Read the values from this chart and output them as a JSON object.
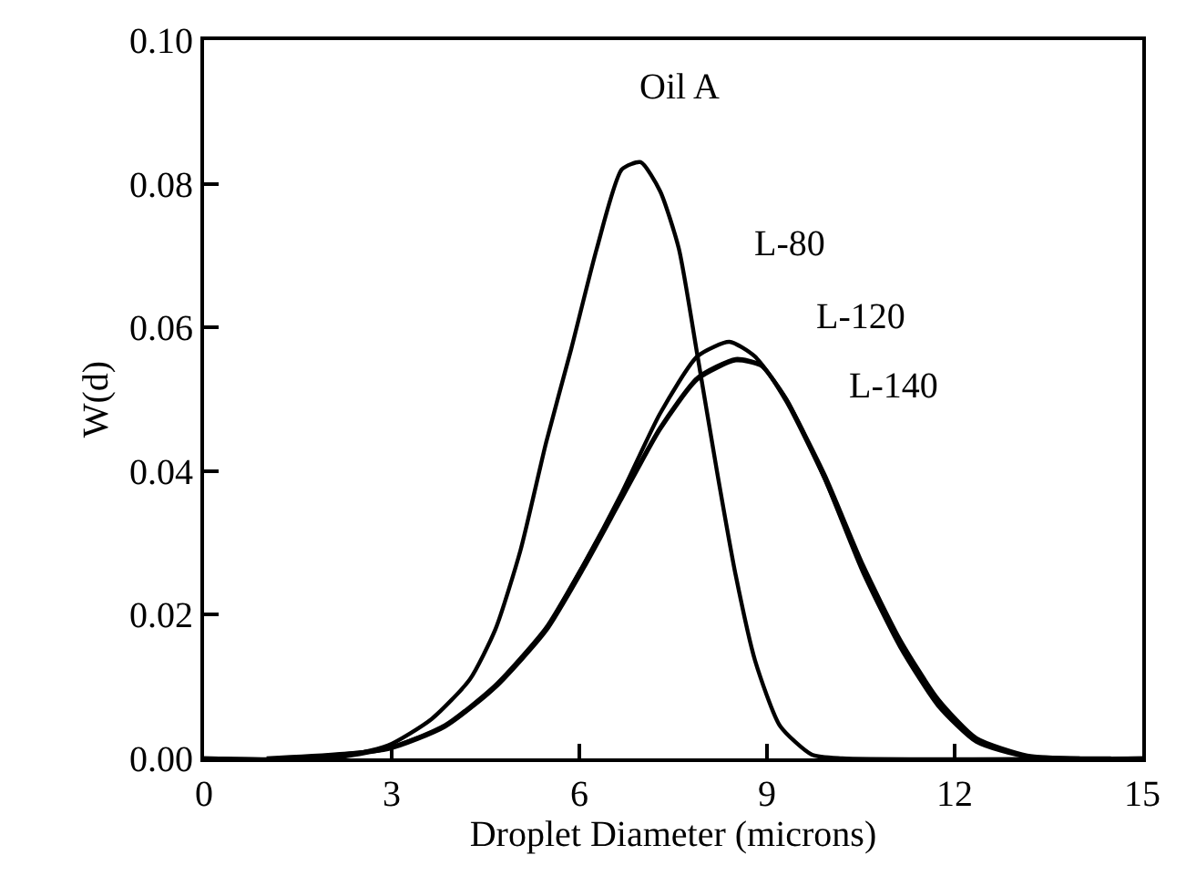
{
  "chart_data": {
    "type": "line",
    "xlabel": "Droplet Diameter (microns)",
    "ylabel": "W(d)",
    "xlim": [
      0,
      15
    ],
    "ylim": [
      0,
      0.1
    ],
    "xticks": [
      0,
      3,
      6,
      9,
      12,
      15
    ],
    "yticks": [
      {
        "value": 0,
        "label": "0.00"
      },
      {
        "value": 0.02,
        "label": "0.02"
      },
      {
        "value": 0.04,
        "label": "0.04"
      },
      {
        "value": 0.06,
        "label": "0.06"
      },
      {
        "value": 0.08,
        "label": "0.08"
      },
      {
        "value": 0.1,
        "label": "0.10"
      }
    ],
    "legend": false,
    "marker": "none",
    "line_style": "solid",
    "series": [
      {
        "name": "Oil A",
        "color": "#000000",
        "x": [
          0,
          2,
          2.94,
          3.64,
          4.25,
          4.66,
          5.06,
          5.47,
          5.87,
          6.28,
          6.68,
          6.98,
          7.29,
          7.59,
          7.89,
          8.2,
          8.5,
          8.81,
          9.21,
          9.72,
          10.2,
          15
        ],
        "values": [
          0,
          0,
          0.0018,
          0.0055,
          0.011,
          0.018,
          0.029,
          0.044,
          0.057,
          0.071,
          0.082,
          0.083,
          0.079,
          0.071,
          0.056,
          0.04,
          0.0255,
          0.0136,
          0.0045,
          0.0005,
          0,
          0
        ]
      },
      {
        "name": "L-80",
        "color": "#000000",
        "x": [
          0,
          2,
          2.94,
          3.85,
          4.66,
          5.47,
          6.07,
          6.68,
          7.29,
          7.89,
          8.4,
          8.8,
          9.31,
          9.92,
          10.53,
          11.13,
          11.74,
          12.35,
          13.16,
          15
        ],
        "values": [
          0,
          0,
          0.0014,
          0.0045,
          0.01,
          0.018,
          0.027,
          0.037,
          0.048,
          0.056,
          0.058,
          0.056,
          0.05,
          0.039,
          0.026,
          0.0155,
          0.0073,
          0.0023,
          0.0002,
          0
        ]
      },
      {
        "name": "L-120",
        "color": "#000000",
        "x": [
          1.5,
          2.94,
          3.85,
          4.66,
          5.47,
          6.07,
          6.68,
          7.29,
          7.89,
          8.5,
          8.9,
          9.31,
          9.92,
          10.53,
          11.13,
          11.74,
          12.35,
          13.16,
          14.5
        ],
        "values": [
          0,
          0.0014,
          0.0046,
          0.0102,
          0.0182,
          0.027,
          0.0365,
          0.046,
          0.053,
          0.0556,
          0.0548,
          0.0497,
          0.039,
          0.0265,
          0.016,
          0.0078,
          0.0026,
          0.0003,
          0
        ]
      },
      {
        "name": "L-140",
        "color": "#000000",
        "x": [
          1,
          2.94,
          3.85,
          4.66,
          5.47,
          6.07,
          6.68,
          7.29,
          7.89,
          8.5,
          8.9,
          9.31,
          9.92,
          10.53,
          11.13,
          11.74,
          12.35,
          13.16,
          14
        ],
        "values": [
          0,
          0.0013,
          0.0044,
          0.0099,
          0.0178,
          0.0265,
          0.0362,
          0.0458,
          0.0528,
          0.0554,
          0.0547,
          0.0499,
          0.0395,
          0.027,
          0.0165,
          0.0082,
          0.0028,
          0.0004,
          0
        ]
      }
    ]
  }
}
